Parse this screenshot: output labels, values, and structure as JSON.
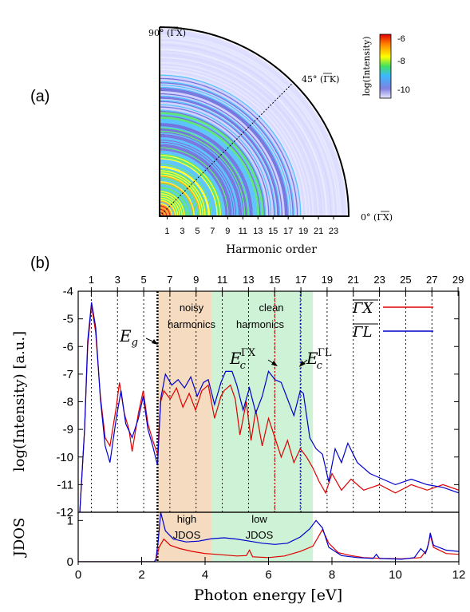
{
  "panel_a": {
    "label": "(a)",
    "angle_90": "90° (ΓX)",
    "angle_45": "45° (ΓK)",
    "angle_0": "0° (ΓX)",
    "xlabel": "Harmonic order",
    "x_ticks": [
      "1",
      "3",
      "5",
      "7",
      "9",
      "11",
      "13",
      "15",
      "17",
      "19",
      "21",
      "23"
    ],
    "colorbar": {
      "label": "log(Intensity)",
      "ticks": [
        "-6",
        "-8",
        "-10"
      ],
      "colors": [
        "#c8c8ff",
        "#5a5ad8",
        "#3cb8ff",
        "#40e060",
        "#ffff00",
        "#ff9000",
        "#e00000"
      ]
    }
  },
  "panel_b": {
    "label": "(b)",
    "top_ticks": [
      "1",
      "3",
      "5",
      "7",
      "9",
      "11",
      "13",
      "15",
      "17",
      "19",
      "21",
      "23",
      "25",
      "27",
      "29"
    ],
    "bands": [
      {
        "line1": "noisy",
        "line2": "harmonics",
        "color": "#f5dcc0"
      },
      {
        "line1": "clean",
        "line2": "harmonics",
        "color": "#cdf2d5"
      }
    ],
    "jdos_bands": [
      {
        "line1": "high",
        "line2": "JDOS"
      },
      {
        "line1": "low",
        "line2": "JDOS"
      }
    ],
    "annotations": {
      "eg": "E",
      "eg_sub": "g",
      "ec": "E",
      "ec_sub": "c",
      "ec_sup_gx": "ΓX",
      "ec_sup_gl": "ΓL"
    },
    "legend": [
      {
        "label": "ΓX",
        "color": "#e00000"
      },
      {
        "label": "ΓL",
        "color": "#0000cc"
      }
    ],
    "ylabel_main": "log(Intensity) [a.u.]",
    "ylabel_jdos": "JDOS",
    "xlabel": "Photon energy [eV]"
  },
  "chart_data": [
    {
      "type": "heatmap",
      "title": "",
      "xlabel": "Harmonic order",
      "x_ticks": [
        1,
        3,
        5,
        7,
        9,
        11,
        13,
        15,
        17,
        19,
        21,
        23
      ],
      "xlim": [
        0,
        25
      ],
      "angle_range_deg": [
        0,
        90
      ],
      "colorbar_label": "log(Intensity)",
      "colorbar_range": [
        -11,
        -5.5
      ],
      "colorbar_ticks": [
        -6,
        -8,
        -10
      ]
    },
    {
      "type": "line",
      "xlabel": "Photon energy [eV]",
      "ylabel": "log(Intensity) [a.u.]",
      "xlim": [
        0,
        12
      ],
      "ylim": [
        -12,
        -4
      ],
      "x_ticks": [
        0,
        2,
        4,
        6,
        8,
        10,
        12
      ],
      "y_ticks": [
        -4,
        -5,
        -6,
        -7,
        -8,
        -9,
        -10,
        -11,
        -12
      ],
      "top_axis_harmonic_order": [
        1,
        3,
        5,
        7,
        9,
        11,
        13,
        15,
        17,
        19,
        21,
        23,
        25,
        27,
        29
      ],
      "fundamental_photon_energy_eV": 0.413,
      "Eg_eV": 2.5,
      "Ec_GX_eV": 6.2,
      "Ec_GL_eV": 7.0,
      "noisy_band_eV": [
        2.5,
        4.2
      ],
      "clean_band_eV": [
        4.2,
        7.4
      ],
      "series": [
        {
          "name": "ΓX",
          "color": "#e00000",
          "points": [
            [
              0.05,
              -12
            ],
            [
              0.2,
              -9.0
            ],
            [
              0.3,
              -6.0
            ],
            [
              0.42,
              -4.5
            ],
            [
              0.55,
              -5.5
            ],
            [
              0.7,
              -7.8
            ],
            [
              0.85,
              -9.3
            ],
            [
              1.0,
              -9.6
            ],
            [
              1.2,
              -8.2
            ],
            [
              1.3,
              -7.3
            ],
            [
              1.45,
              -8.4
            ],
            [
              1.6,
              -9.0
            ],
            [
              1.7,
              -9.8
            ],
            [
              1.9,
              -8.4
            ],
            [
              2.05,
              -7.6
            ],
            [
              2.2,
              -8.8
            ],
            [
              2.35,
              -9.4
            ],
            [
              2.5,
              -9.9
            ],
            [
              2.6,
              -8.0
            ],
            [
              2.7,
              -7.6
            ],
            [
              2.9,
              -7.9
            ],
            [
              3.1,
              -7.5
            ],
            [
              3.3,
              -8.2
            ],
            [
              3.5,
              -7.7
            ],
            [
              3.7,
              -8.3
            ],
            [
              3.9,
              -7.6
            ],
            [
              4.1,
              -7.4
            ],
            [
              4.3,
              -8.6
            ],
            [
              4.5,
              -7.8
            ],
            [
              4.6,
              -7.6
            ],
            [
              4.8,
              -7.4
            ],
            [
              4.95,
              -7.9
            ],
            [
              5.1,
              -9.2
            ],
            [
              5.3,
              -8.0
            ],
            [
              5.45,
              -9.4
            ],
            [
              5.6,
              -8.3
            ],
            [
              5.8,
              -9.6
            ],
            [
              6.0,
              -8.6
            ],
            [
              6.2,
              -9.3
            ],
            [
              6.4,
              -10.0
            ],
            [
              6.6,
              -9.4
            ],
            [
              6.8,
              -10.2
            ],
            [
              7.0,
              -9.7
            ],
            [
              7.2,
              -10.0
            ],
            [
              7.4,
              -10.4
            ],
            [
              7.6,
              -10.9
            ],
            [
              7.8,
              -11.3
            ],
            [
              8.0,
              -10.6
            ],
            [
              8.3,
              -11.2
            ],
            [
              8.6,
              -10.8
            ],
            [
              9.0,
              -11.2
            ],
            [
              9.5,
              -11.0
            ],
            [
              10.0,
              -11.3
            ],
            [
              10.5,
              -11.0
            ],
            [
              11.0,
              -11.2
            ],
            [
              11.5,
              -11.0
            ],
            [
              12.0,
              -11.2
            ]
          ]
        },
        {
          "name": "ΓL",
          "color": "#0000cc",
          "points": [
            [
              0.05,
              -12
            ],
            [
              0.2,
              -9.0
            ],
            [
              0.3,
              -5.8
            ],
            [
              0.42,
              -4.4
            ],
            [
              0.55,
              -5.3
            ],
            [
              0.7,
              -7.9
            ],
            [
              0.85,
              -9.6
            ],
            [
              1.0,
              -10.2
            ],
            [
              1.2,
              -8.6
            ],
            [
              1.35,
              -7.6
            ],
            [
              1.5,
              -8.8
            ],
            [
              1.7,
              -9.3
            ],
            [
              1.9,
              -8.6
            ],
            [
              2.05,
              -7.8
            ],
            [
              2.2,
              -9.0
            ],
            [
              2.35,
              -9.6
            ],
            [
              2.5,
              -10.3
            ],
            [
              2.6,
              -7.9
            ],
            [
              2.75,
              -7.0
            ],
            [
              2.95,
              -7.4
            ],
            [
              3.15,
              -7.2
            ],
            [
              3.35,
              -7.5
            ],
            [
              3.55,
              -7.1
            ],
            [
              3.75,
              -7.8
            ],
            [
              3.95,
              -7.3
            ],
            [
              4.1,
              -7.2
            ],
            [
              4.3,
              -8.1
            ],
            [
              4.5,
              -7.3
            ],
            [
              4.65,
              -6.9
            ],
            [
              4.85,
              -6.9
            ],
            [
              5.0,
              -7.4
            ],
            [
              5.2,
              -8.3
            ],
            [
              5.4,
              -7.5
            ],
            [
              5.6,
              -8.4
            ],
            [
              5.8,
              -7.8
            ],
            [
              6.0,
              -6.9
            ],
            [
              6.2,
              -7.2
            ],
            [
              6.4,
              -7.3
            ],
            [
              6.6,
              -7.9
            ],
            [
              6.8,
              -8.5
            ],
            [
              7.0,
              -7.6
            ],
            [
              7.1,
              -7.7
            ],
            [
              7.3,
              -9.3
            ],
            [
              7.5,
              -9.7
            ],
            [
              7.7,
              -9.9
            ],
            [
              7.9,
              -10.9
            ],
            [
              8.1,
              -9.7
            ],
            [
              8.3,
              -10.2
            ],
            [
              8.5,
              -9.5
            ],
            [
              8.8,
              -10.2
            ],
            [
              9.2,
              -10.6
            ],
            [
              9.6,
              -10.8
            ],
            [
              10.0,
              -11.0
            ],
            [
              10.5,
              -10.8
            ],
            [
              11.0,
              -11.0
            ],
            [
              11.5,
              -11.1
            ],
            [
              12.0,
              -11.3
            ]
          ]
        }
      ]
    },
    {
      "type": "line",
      "ylabel": "JDOS",
      "xlabel": "Photon energy [eV]",
      "xlim": [
        0,
        12
      ],
      "ylim": [
        0,
        1.2
      ],
      "y_ticks": [
        0,
        1
      ],
      "high_JDOS_band_eV": [
        2.5,
        4.2
      ],
      "low_JDOS_band_eV": [
        4.2,
        7.4
      ],
      "series": [
        {
          "name": "ΓX",
          "color": "#e00000",
          "points": [
            [
              0,
              0
            ],
            [
              2.4,
              0
            ],
            [
              2.45,
              0.05
            ],
            [
              2.55,
              0.35
            ],
            [
              2.7,
              0.55
            ],
            [
              2.9,
              0.4
            ],
            [
              3.2,
              0.32
            ],
            [
              3.6,
              0.25
            ],
            [
              4.0,
              0.2
            ],
            [
              4.5,
              0.17
            ],
            [
              5.0,
              0.14
            ],
            [
              5.3,
              0.15
            ],
            [
              5.4,
              0.28
            ],
            [
              5.5,
              0.12
            ],
            [
              6.0,
              0.1
            ],
            [
              6.5,
              0.14
            ],
            [
              7.0,
              0.25
            ],
            [
              7.4,
              0.38
            ],
            [
              7.7,
              0.78
            ],
            [
              7.9,
              0.45
            ],
            [
              8.2,
              0.22
            ],
            [
              8.6,
              0.15
            ],
            [
              9.0,
              0.1
            ],
            [
              9.6,
              0.08
            ],
            [
              10.2,
              0.07
            ],
            [
              10.8,
              0.1
            ],
            [
              11.0,
              0.3
            ],
            [
              11.1,
              0.65
            ],
            [
              11.2,
              0.35
            ],
            [
              11.6,
              0.2
            ],
            [
              12.0,
              0.18
            ]
          ]
        },
        {
          "name": "ΓL",
          "color": "#0000cc",
          "points": [
            [
              0,
              0
            ],
            [
              2.4,
              0
            ],
            [
              2.45,
              0.06
            ],
            [
              2.52,
              0.5
            ],
            [
              2.6,
              1.2
            ],
            [
              2.75,
              0.75
            ],
            [
              3.0,
              0.55
            ],
            [
              3.4,
              0.48
            ],
            [
              3.8,
              0.5
            ],
            [
              4.2,
              0.56
            ],
            [
              4.6,
              0.58
            ],
            [
              5.0,
              0.55
            ],
            [
              5.4,
              0.5
            ],
            [
              5.8,
              0.45
            ],
            [
              6.2,
              0.42
            ],
            [
              6.6,
              0.45
            ],
            [
              7.0,
              0.6
            ],
            [
              7.3,
              0.8
            ],
            [
              7.5,
              1.0
            ],
            [
              7.7,
              0.82
            ],
            [
              7.9,
              0.35
            ],
            [
              8.3,
              0.15
            ],
            [
              8.8,
              0.1
            ],
            [
              9.3,
              0.08
            ],
            [
              9.4,
              0.18
            ],
            [
              9.5,
              0.08
            ],
            [
              10.2,
              0.06
            ],
            [
              10.6,
              0.1
            ],
            [
              10.8,
              0.32
            ],
            [
              10.95,
              0.2
            ],
            [
              11.05,
              0.45
            ],
            [
              11.1,
              0.7
            ],
            [
              11.2,
              0.4
            ],
            [
              11.6,
              0.28
            ],
            [
              12.0,
              0.25
            ]
          ]
        }
      ]
    }
  ]
}
